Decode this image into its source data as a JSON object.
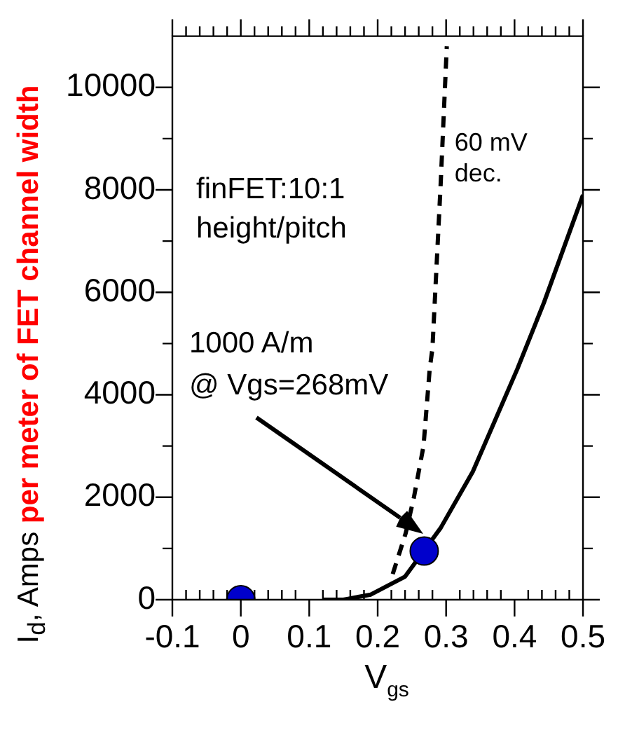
{
  "chart_data": {
    "type": "line",
    "xlabel": "V$_{gs}$",
    "ylabel": "I$_{d}$, Amps per meter of FET channel width",
    "xlim": [
      -0.1,
      0.5
    ],
    "ylim": [
      0,
      11000
    ],
    "xticks": [
      -0.1,
      {
        "value": -0.08,
        "label": null
      },
      {
        "value": -0.06,
        "label": null
      },
      {
        "value": -0.04,
        "label": null
      },
      {
        "value": -0.02,
        "label": null
      },
      0,
      {
        "value": 0.02,
        "label": null
      },
      {
        "value": 0.04,
        "label": null
      },
      {
        "value": 0.06,
        "label": null
      },
      {
        "value": 0.08,
        "label": null
      },
      0.1,
      {
        "value": 0.12,
        "label": null
      },
      {
        "value": 0.14,
        "label": null
      },
      {
        "value": 0.16,
        "label": null
      },
      {
        "value": 0.18,
        "label": null
      },
      0.2,
      {
        "value": 0.22,
        "label": null
      },
      {
        "value": 0.24,
        "label": null
      },
      {
        "value": 0.26,
        "label": null
      },
      {
        "value": 0.28,
        "label": null
      },
      0.3,
      {
        "value": 0.32,
        "label": null
      },
      {
        "value": 0.34,
        "label": null
      },
      {
        "value": 0.36,
        "label": null
      },
      {
        "value": 0.38,
        "label": null
      },
      0.4,
      {
        "value": 0.42,
        "label": null
      },
      {
        "value": 0.44,
        "label": null
      },
      {
        "value": 0.46,
        "label": null
      },
      {
        "value": 0.48,
        "label": null
      },
      0.5
    ],
    "yticks": [
      0,
      {
        "value": 1000,
        "label": null
      },
      2000,
      {
        "value": 3000,
        "label": null
      },
      4000,
      {
        "value": 5000,
        "label": null
      },
      6000,
      {
        "value": 7000,
        "label": null
      },
      8000,
      {
        "value": 9000,
        "label": null
      },
      10000
    ],
    "grid": false,
    "legend": false,
    "series": [
      {
        "color": "#000000",
        "line_style": "solid",
        "marker": "none",
        "x": [
          0.12,
          0.15,
          0.19,
          0.24,
          0.292,
          0.339,
          0.404,
          0.443,
          0.5
        ],
        "values": [
          0,
          0,
          100,
          450,
          1400,
          2500,
          4500,
          5800,
          7900
        ]
      },
      {
        "color": "#000000",
        "line_style": "dashed",
        "marker": "none",
        "x": [
          0.222,
          0.241,
          0.253,
          0.267,
          0.276,
          0.28,
          0.286,
          0.292,
          0.298,
          0.301
        ],
        "values": [
          500,
          1300,
          2000,
          3000,
          4500,
          4900,
          6500,
          8100,
          9900,
          10800
        ]
      },
      {
        "type": "scatter",
        "color": "#0000cc",
        "marker": "circle",
        "x": [
          0,
          0.268
        ],
        "values": [
          0,
          950
        ]
      }
    ],
    "annotations": [
      "finFET:10:1\nheight/pitch",
      "1000 A/m\n@ Vgs=268mV",
      {
        "text": "60 mV\ndec.",
        "x": 0.3,
        "y": 8900
      }
    ]
  }
}
